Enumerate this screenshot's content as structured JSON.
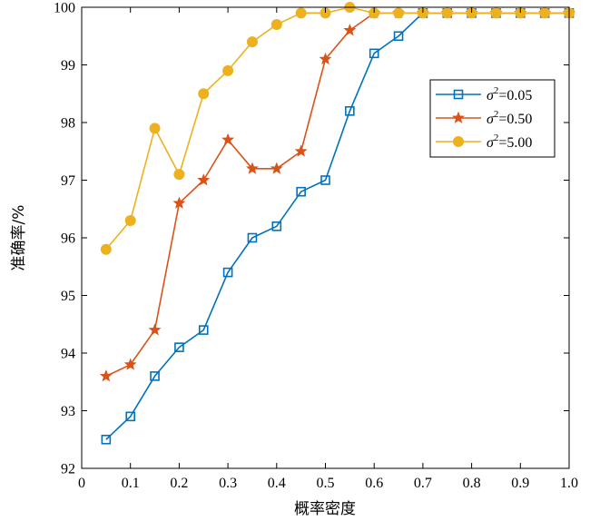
{
  "chart_data": {
    "type": "line",
    "title": "",
    "xlabel": "概率密度",
    "ylabel": "准确率/%",
    "xlim": [
      0,
      1.0
    ],
    "ylim": [
      92,
      100
    ],
    "x_ticks": [
      "0",
      "0.1",
      "0.2",
      "0.3",
      "0.4",
      "0.5",
      "0.6",
      "0.7",
      "0.8",
      "0.9",
      "1.0"
    ],
    "y_ticks": [
      "92",
      "93",
      "94",
      "95",
      "96",
      "97",
      "98",
      "99",
      "100"
    ],
    "grid": false,
    "legend_position": "right",
    "x": [
      0.05,
      0.1,
      0.15,
      0.2,
      0.25,
      0.3,
      0.35,
      0.4,
      0.45,
      0.5,
      0.55,
      0.6,
      0.65,
      0.7,
      0.75,
      0.8,
      0.85,
      0.9,
      0.95,
      1.0
    ],
    "series": [
      {
        "name": "σ²=0.05",
        "label_symbol": "σ",
        "label_sup": "2",
        "label_rest": "=0.05",
        "color": "#0072BD",
        "marker": "square",
        "values": [
          92.5,
          92.9,
          93.6,
          94.1,
          94.4,
          95.4,
          96.0,
          96.2,
          96.8,
          97.0,
          98.2,
          99.2,
          99.5,
          99.9,
          99.9,
          99.9,
          99.9,
          99.9,
          99.9,
          99.9
        ]
      },
      {
        "name": "σ²=0.50",
        "label_symbol": "σ",
        "label_sup": "2",
        "label_rest": "=0.50",
        "color": "#D95319",
        "marker": "star",
        "values": [
          93.6,
          93.8,
          94.4,
          96.6,
          97.0,
          97.7,
          97.2,
          97.2,
          97.5,
          99.1,
          99.6,
          99.9,
          99.9,
          99.9,
          99.9,
          99.9,
          99.9,
          99.9,
          99.9,
          99.9
        ]
      },
      {
        "name": "σ²=5.00",
        "label_symbol": "σ",
        "label_sup": "2",
        "label_rest": "=5.00",
        "color": "#EDB120",
        "marker": "circle",
        "values": [
          95.8,
          96.3,
          97.9,
          97.1,
          98.5,
          98.9,
          99.4,
          99.7,
          99.9,
          99.9,
          100.0,
          99.9,
          99.9,
          99.9,
          99.9,
          99.9,
          99.9,
          99.9,
          99.9,
          99.9
        ]
      }
    ]
  }
}
